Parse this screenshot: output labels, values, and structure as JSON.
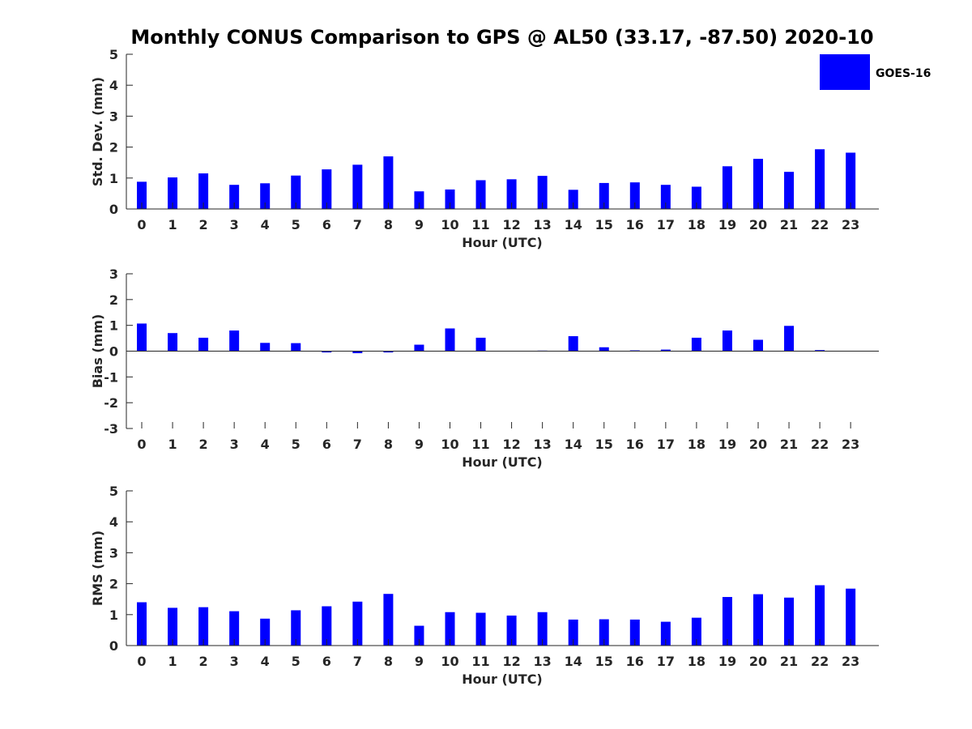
{
  "title": "Monthly CONUS Comparison to GPS @ AL50 (33.17, -87.50) 2020-10",
  "legend": {
    "label": "GOES-16",
    "color": "#0000ff"
  },
  "chart_data": [
    {
      "type": "bar",
      "name": "std-dev",
      "xlabel": "Hour (UTC)",
      "ylabel": "Std. Dev. (mm)",
      "ylim": [
        0,
        5
      ],
      "yticks": [
        "0",
        "1",
        "2",
        "3",
        "4",
        "5"
      ],
      "categories": [
        "0",
        "1",
        "2",
        "3",
        "4",
        "5",
        "6",
        "7",
        "8",
        "9",
        "10",
        "11",
        "12",
        "13",
        "14",
        "15",
        "16",
        "17",
        "18",
        "19",
        "20",
        "21",
        "22",
        "23"
      ],
      "series": [
        {
          "name": "GOES-16",
          "values": [
            0.88,
            1.02,
            1.15,
            0.78,
            0.83,
            1.08,
            1.28,
            1.43,
            1.7,
            0.57,
            0.63,
            0.93,
            0.96,
            1.07,
            0.62,
            0.84,
            0.86,
            0.78,
            0.72,
            1.38,
            1.62,
            1.2,
            1.93,
            1.82
          ]
        }
      ]
    },
    {
      "type": "bar",
      "name": "bias",
      "xlabel": "Hour (UTC)",
      "ylabel": "Bias (mm)",
      "ylim": [
        -3,
        3
      ],
      "yticks": [
        "-3",
        "-2",
        "-1",
        "0",
        "1",
        "2",
        "3"
      ],
      "categories": [
        "0",
        "1",
        "2",
        "3",
        "4",
        "5",
        "6",
        "7",
        "8",
        "9",
        "10",
        "11",
        "12",
        "13",
        "14",
        "15",
        "16",
        "17",
        "18",
        "19",
        "20",
        "21",
        "22",
        "23"
      ],
      "series": [
        {
          "name": "GOES-16",
          "values": [
            1.07,
            0.7,
            0.52,
            0.8,
            0.32,
            0.31,
            -0.05,
            -0.08,
            -0.05,
            0.25,
            0.88,
            0.52,
            0.0,
            0.02,
            0.58,
            0.15,
            0.03,
            0.06,
            0.52,
            0.8,
            0.44,
            0.98,
            0.04,
            0.0
          ]
        }
      ]
    },
    {
      "type": "bar",
      "name": "rms",
      "xlabel": "Hour (UTC)",
      "ylabel": "RMS (mm)",
      "ylim": [
        0,
        5
      ],
      "yticks": [
        "0",
        "1",
        "2",
        "3",
        "4",
        "5"
      ],
      "categories": [
        "0",
        "1",
        "2",
        "3",
        "4",
        "5",
        "6",
        "7",
        "8",
        "9",
        "10",
        "11",
        "12",
        "13",
        "14",
        "15",
        "16",
        "17",
        "18",
        "19",
        "20",
        "21",
        "22",
        "23"
      ],
      "series": [
        {
          "name": "GOES-16",
          "values": [
            1.4,
            1.22,
            1.24,
            1.11,
            0.87,
            1.14,
            1.27,
            1.42,
            1.67,
            0.64,
            1.08,
            1.06,
            0.97,
            1.08,
            0.84,
            0.85,
            0.84,
            0.77,
            0.9,
            1.57,
            1.66,
            1.55,
            1.95,
            1.84
          ]
        }
      ]
    }
  ]
}
